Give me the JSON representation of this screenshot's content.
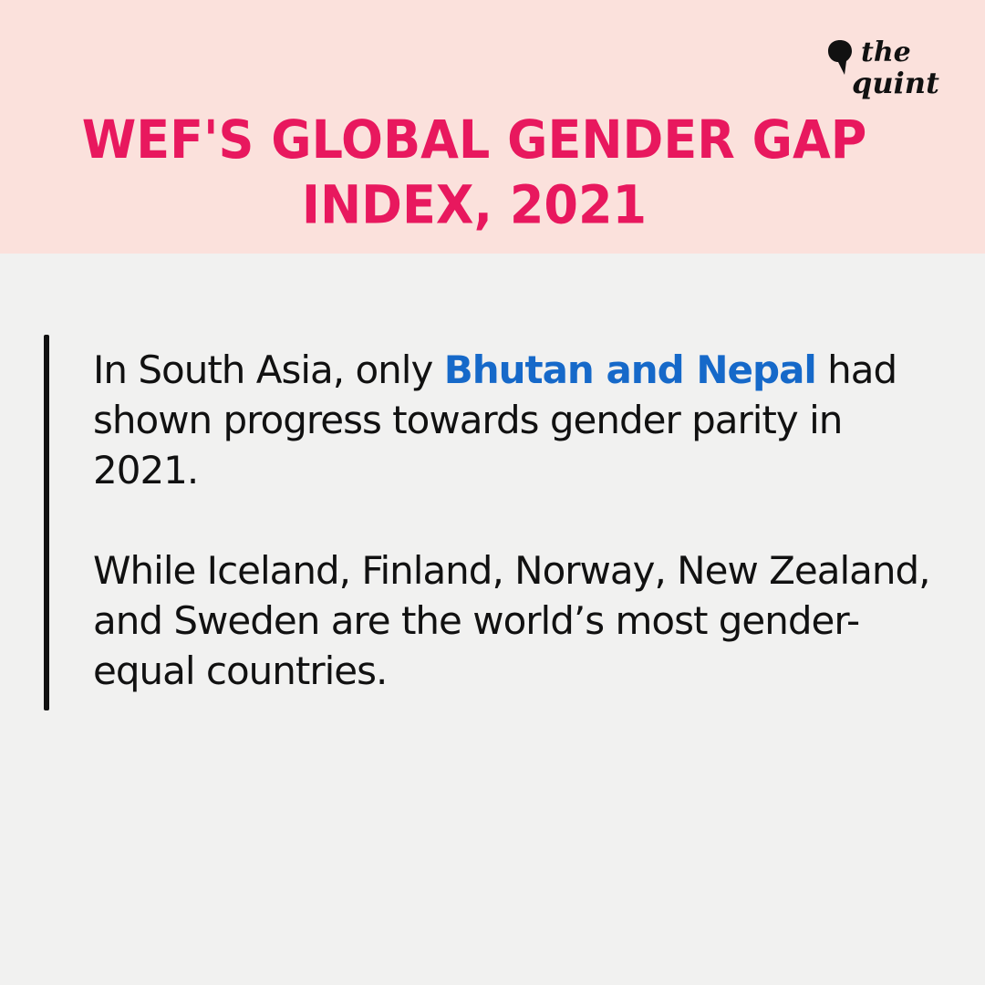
{
  "header": {
    "title": "WEF'S GLOBAL GENDER GAP INDEX, 2021",
    "background": "#fbe1dc",
    "title_color": "#e8185e"
  },
  "brand": {
    "logo_line1": "the",
    "logo_line2": "quint",
    "logo_icon": "quote-bubble-icon"
  },
  "content": {
    "paragraph1_prefix": "In South Asia, only ",
    "paragraph1_highlight": "Bhutan and Nepal",
    "paragraph1_suffix": " had shown progress towards gender parity in 2021.",
    "paragraph2": "While Iceland, Finland, Norway, New Zealand, and Sweden are the world’s most gender-equal countries.",
    "highlight_color": "#1669c9",
    "text_color": "#111111"
  }
}
